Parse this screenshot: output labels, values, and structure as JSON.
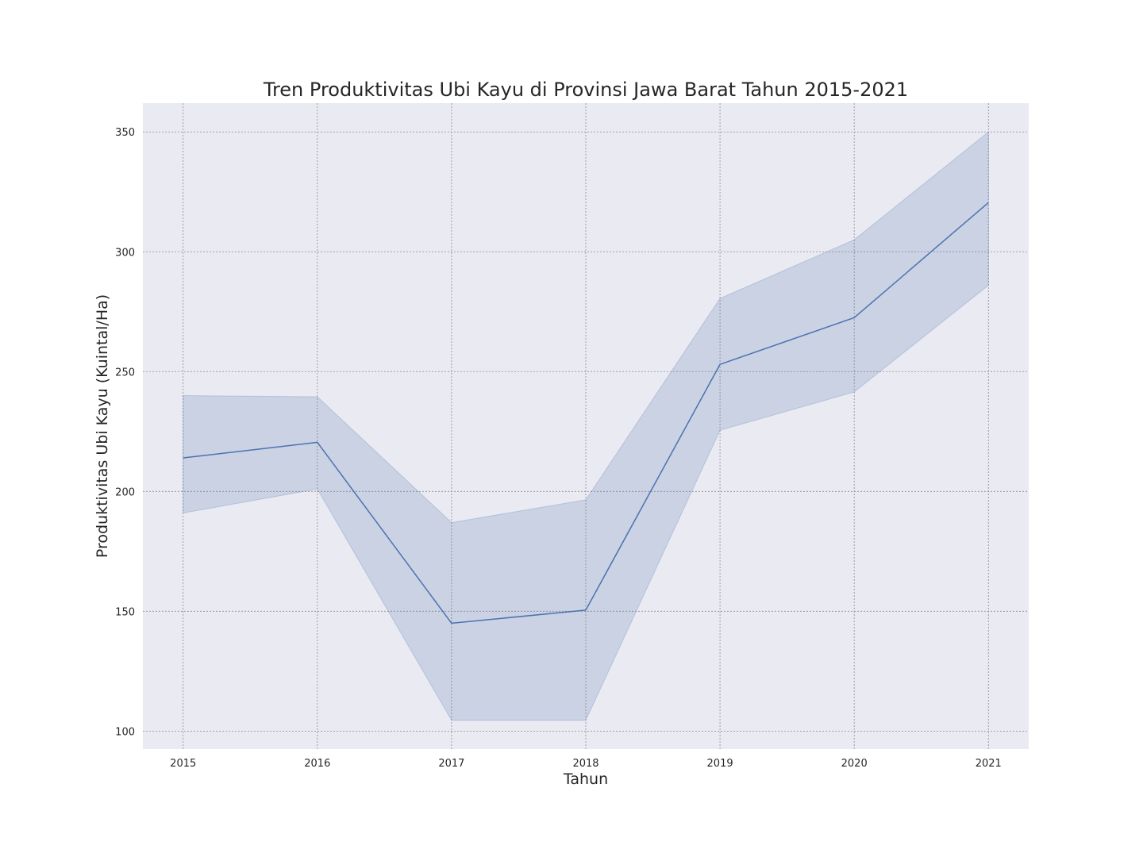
{
  "chart_data": {
    "type": "line",
    "title": "Tren Produktivitas Ubi Kayu di Provinsi Jawa Barat Tahun 2015-2021",
    "xlabel": "Tahun",
    "ylabel": "Produktivitas Ubi Kayu (Kuintal/Ha)",
    "categories": [
      "2015",
      "2016",
      "2017",
      "2018",
      "2019",
      "2020",
      "2021"
    ],
    "series": [
      {
        "values": [
          214,
          220.5,
          145,
          150.5,
          253,
          272.5,
          320.5
        ],
        "ci_lower": [
          191,
          201,
          104.5,
          104.5,
          225.5,
          241.5,
          286
        ],
        "ci_upper": [
          240,
          239.5,
          187,
          196.5,
          280.5,
          305,
          350
        ],
        "color": "#4c72b0"
      }
    ],
    "yticks": [
      100,
      150,
      200,
      250,
      300,
      350
    ],
    "xlim": [
      2014.7,
      2021.3
    ],
    "ylim": [
      92.5,
      362
    ],
    "grid": true,
    "colors": {
      "plot_background": "#eaeaf2",
      "band": "#4c72b0",
      "line": "#4c72b0",
      "grid": "#8c8c8c"
    }
  }
}
